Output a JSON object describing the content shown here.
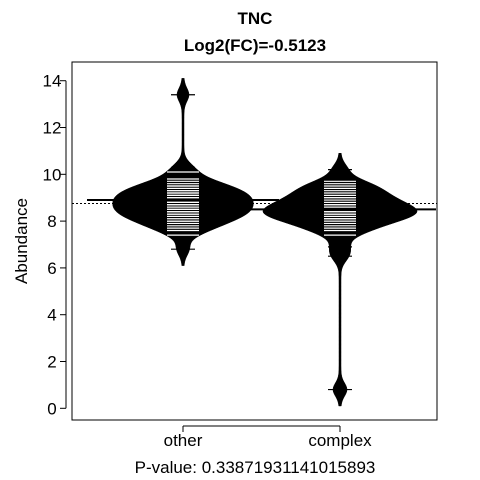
{
  "chart_data": {
    "type": "beanplot",
    "title": "TNC",
    "subtitle": "Log2(FC)=-0.5123",
    "xlabel": "",
    "ylabel": "Abundance",
    "caption": "P-value: 0.33871931141015893",
    "categories": [
      "other",
      "complex"
    ],
    "ylim": [
      -0.5,
      14.8
    ],
    "yticks": [
      0,
      2,
      4,
      6,
      8,
      10,
      12,
      14
    ],
    "overall_mean": 8.75,
    "groups": [
      {
        "name": "other",
        "mean": 8.9,
        "min": 6.1,
        "max": 14.1,
        "values": [
          6.8,
          7.4,
          7.6,
          7.7,
          7.8,
          7.9,
          8.0,
          8.0,
          8.1,
          8.2,
          8.2,
          8.3,
          8.3,
          8.4,
          8.4,
          8.5,
          8.5,
          8.6,
          8.6,
          8.7,
          8.7,
          8.8,
          8.8,
          8.9,
          8.9,
          9.0,
          9.0,
          9.1,
          9.1,
          9.2,
          9.2,
          9.3,
          9.3,
          9.4,
          9.5,
          9.5,
          9.6,
          9.7,
          9.8,
          10.1,
          10.3,
          13.4
        ]
      },
      {
        "name": "complex",
        "mean": 8.5,
        "min": 0.1,
        "max": 10.9,
        "values": [
          0.8,
          6.5,
          6.9,
          7.4,
          7.6,
          7.7,
          7.8,
          7.9,
          8.0,
          8.1,
          8.1,
          8.2,
          8.2,
          8.3,
          8.3,
          8.4,
          8.4,
          8.5,
          8.5,
          8.6,
          8.6,
          8.7,
          8.7,
          8.8,
          8.9,
          9.0,
          9.0,
          9.1,
          9.2,
          9.3,
          9.4,
          9.5,
          9.6,
          9.7,
          10.2
        ]
      }
    ],
    "colors": {
      "bean": "#000000",
      "line": "#ffffff",
      "frame": "#000000"
    }
  }
}
